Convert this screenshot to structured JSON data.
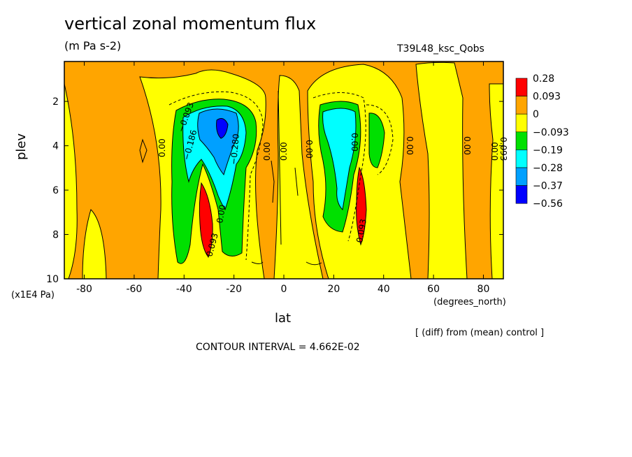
{
  "title": "vertical zonal momentum flux",
  "subtitle": "(m Pa s-2)",
  "run_label": "T39L48_ksc_Qobs",
  "chart_data": {
    "type": "heatmap",
    "xlabel": "lat",
    "xunits": "(degrees_north)",
    "ylabel": "plev",
    "yunits": "(x1E4 Pa)",
    "x_ticks": [
      "-80",
      "-60",
      "-40",
      "-20",
      "0",
      "20",
      "40",
      "60",
      "80"
    ],
    "y_ticks": [
      "2",
      "4",
      "6",
      "8",
      "10"
    ],
    "xlim": [
      -88,
      88
    ],
    "ylim": [
      10,
      0.2
    ],
    "colorbar": {
      "labels": [
        "0.28",
        "0.093",
        "0",
        "−0.093",
        "−0.19",
        "−0.28",
        "−0.37",
        "−0.56"
      ],
      "colors": [
        "#ff0000",
        "#ffa500",
        "#ffff00",
        "#00e000",
        "#00ffff",
        "#00a0ff",
        "#0000ff"
      ]
    },
    "background_color": "#ffa500",
    "contour_labels": [
      "0.00",
      "−0.186",
      "−0.093",
      "−0.280",
      "0.093",
      "0.00",
      "0.00",
      "0.00",
      "0.00",
      "0.093",
      "0.00",
      "0.00",
      "0.00",
      "0.00",
      "0.093"
    ],
    "note": "[ (diff) from (mean) control ]",
    "contour_interval": "CONTOUR INTERVAL = 4.662E-02"
  }
}
